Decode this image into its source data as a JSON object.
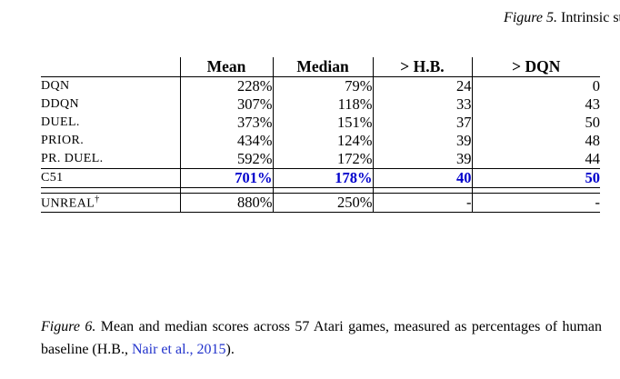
{
  "figure5": {
    "label": "Figure 5.",
    "text": " Intrinsic st"
  },
  "table": {
    "headers": {
      "mean": "Mean",
      "median": "Median",
      "hb": "> H.B.",
      "dqn": "> DQN"
    },
    "rows": [
      {
        "label": "DQN",
        "mean": "228%",
        "median": "79%",
        "hb": "24",
        "dqn": "0"
      },
      {
        "label": "DDQN",
        "mean": "307%",
        "median": "118%",
        "hb": "33",
        "dqn": "43"
      },
      {
        "label": "DUEL.",
        "mean": "373%",
        "median": "151%",
        "hb": "37",
        "dqn": "50"
      },
      {
        "label": "PRIOR.",
        "mean": "434%",
        "median": "124%",
        "hb": "39",
        "dqn": "48"
      },
      {
        "label": "PR. DUEL.",
        "mean": "592%",
        "median": "172%",
        "hb": "39",
        "dqn": "44"
      },
      {
        "label": "C51",
        "mean": "701%",
        "median": "178%",
        "hb": "40",
        "dqn": "50"
      },
      {
        "label": "UNREAL",
        "sup": "†",
        "mean": "880%",
        "median": "250%",
        "hb": "-",
        "dqn": "-"
      }
    ],
    "highlight_color": "#0000cc"
  },
  "figure6": {
    "label": "Figure 6.",
    "text_before_link": " Mean and median scores across 57 Atari games, measured as percentages of human baseline (H.B., ",
    "link": "Nair et al., 2015",
    "text_after_link": ").",
    "link_color": "#2233cc"
  }
}
